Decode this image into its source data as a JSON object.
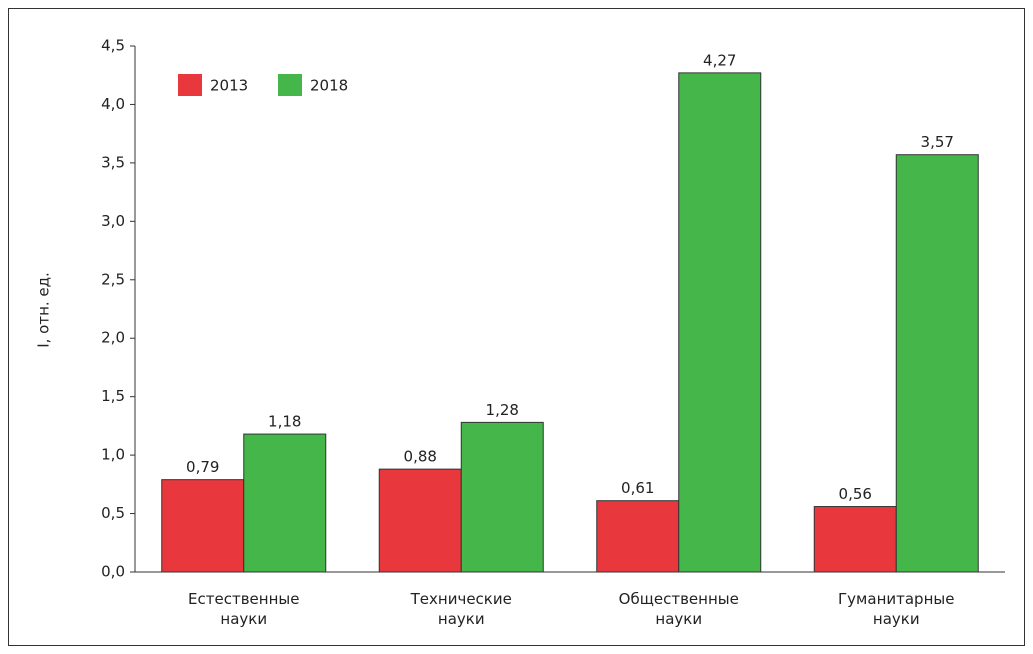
{
  "chart_data": {
    "type": "bar",
    "y_label": "I, отн. ед.",
    "categories": [
      "Естественные науки",
      "Технические науки",
      "Общественные науки",
      "Гуманитарные науки"
    ],
    "series": [
      {
        "name": "2013",
        "color": "#e8383d",
        "values": [
          0.79,
          0.88,
          0.61,
          0.56
        ],
        "value_labels": [
          "0,79",
          "0,88",
          "0,61",
          "0,56"
        ]
      },
      {
        "name": "2018",
        "color": "#45b649",
        "values": [
          1.18,
          1.28,
          4.27,
          3.57
        ],
        "value_labels": [
          "1,18",
          "1,28",
          "4,27",
          "3,57"
        ]
      }
    ],
    "ylim": [
      0,
      4.5
    ],
    "yticks": [
      {
        "value": 0,
        "label": "0,0"
      },
      {
        "value": 0.5,
        "label": "0,5"
      },
      {
        "value": 1,
        "label": "1,0"
      },
      {
        "value": 1.5,
        "label": "1,5"
      },
      {
        "value": 2,
        "label": "2,0"
      },
      {
        "value": 2.5,
        "label": "2,5"
      },
      {
        "value": 3,
        "label": "3,0"
      },
      {
        "value": 3.5,
        "label": "3,5"
      },
      {
        "value": 4,
        "label": "4,0"
      },
      {
        "value": 4.5,
        "label": "4,5"
      }
    ],
    "legend": "upper left"
  }
}
